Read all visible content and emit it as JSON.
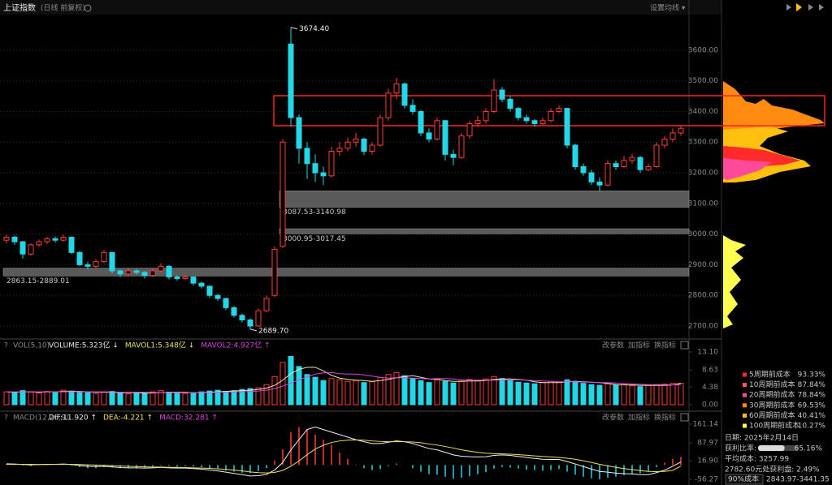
{
  "header": {
    "title": "上证指数",
    "subtitle": "(日线 前复权)",
    "ma_setting": "设置均线 ▾"
  },
  "price_chart": {
    "type": "candlestick",
    "up_color": "#ff3c3c",
    "down_color": "#22d8e6",
    "ylim": [
      2663,
      3716
    ],
    "yticks": [
      {
        "value": 2700,
        "label": "2700.00"
      },
      {
        "value": 2800,
        "label": "2800.00"
      },
      {
        "value": 2900,
        "label": "2900.00"
      },
      {
        "value": 3000,
        "label": "3000.00"
      },
      {
        "value": 3100,
        "label": "3100.00"
      },
      {
        "value": 3200,
        "label": "3200.00"
      },
      {
        "value": 3300,
        "label": "3300.00"
      },
      {
        "value": 3400,
        "label": "3400.00"
      },
      {
        "value": 3500,
        "label": "3500.00"
      },
      {
        "value": 3600,
        "label": "3600.00"
      }
    ],
    "candles": [
      [
        2980,
        2998,
        2970,
        2990
      ],
      [
        2990,
        2995,
        2965,
        2975
      ],
      [
        2975,
        2978,
        2920,
        2935
      ],
      [
        2935,
        2970,
        2930,
        2965
      ],
      [
        2965,
        2982,
        2958,
        2975
      ],
      [
        2975,
        2990,
        2968,
        2985
      ],
      [
        2985,
        2992,
        2972,
        2980
      ],
      [
        2980,
        2998,
        2975,
        2990
      ],
      [
        2990,
        2992,
        2935,
        2940
      ],
      [
        2940,
        2945,
        2895,
        2900
      ],
      [
        2900,
        2910,
        2885,
        2895
      ],
      [
        2895,
        2918,
        2890,
        2910
      ],
      [
        2910,
        2948,
        2905,
        2940
      ],
      [
        2940,
        2942,
        2872,
        2880
      ],
      [
        2880,
        2885,
        2860,
        2870
      ],
      [
        2870,
        2888,
        2862,
        2880
      ],
      [
        2880,
        2886,
        2868,
        2875
      ],
      [
        2875,
        2880,
        2855,
        2865
      ],
      [
        2865,
        2888,
        2860,
        2880
      ],
      [
        2880,
        2905,
        2875,
        2895
      ],
      [
        2895,
        2898,
        2852,
        2860
      ],
      [
        2860,
        2866,
        2848,
        2855
      ],
      [
        2855,
        2868,
        2850,
        2860
      ],
      [
        2860,
        2862,
        2832,
        2840
      ],
      [
        2840,
        2845,
        2822,
        2830
      ],
      [
        2830,
        2832,
        2792,
        2800
      ],
      [
        2800,
        2805,
        2782,
        2790
      ],
      [
        2790,
        2792,
        2752,
        2760
      ],
      [
        2760,
        2765,
        2728,
        2735
      ],
      [
        2735,
        2740,
        2712,
        2720
      ],
      [
        2720,
        2725,
        2689.7,
        2700
      ],
      [
        2700,
        2758,
        2698,
        2750
      ],
      [
        2750,
        2800,
        2745,
        2790
      ],
      [
        2800,
        2960,
        2795,
        2950
      ],
      [
        2960,
        3310,
        2955,
        3300
      ],
      [
        3620,
        3674.4,
        3350,
        3380
      ],
      [
        3380,
        3390,
        3230,
        3280
      ],
      [
        3280,
        3300,
        3180,
        3230
      ],
      [
        3230,
        3260,
        3170,
        3200
      ],
      [
        3200,
        3220,
        3160,
        3190
      ],
      [
        3190,
        3285,
        3185,
        3270
      ],
      [
        3270,
        3300,
        3255,
        3280
      ],
      [
        3280,
        3315,
        3270,
        3300
      ],
      [
        3300,
        3330,
        3285,
        3310
      ],
      [
        3310,
        3315,
        3258,
        3270
      ],
      [
        3270,
        3300,
        3260,
        3290
      ],
      [
        3290,
        3390,
        3285,
        3380
      ],
      [
        3380,
        3475,
        3370,
        3460
      ],
      [
        3460,
        3510,
        3440,
        3490
      ],
      [
        3490,
        3495,
        3410,
        3420
      ],
      [
        3420,
        3440,
        3390,
        3400
      ],
      [
        3400,
        3405,
        3320,
        3330
      ],
      [
        3330,
        3345,
        3300,
        3310
      ],
      [
        3310,
        3380,
        3305,
        3370
      ],
      [
        3370,
        3372,
        3240,
        3260
      ],
      [
        3260,
        3275,
        3225,
        3250
      ],
      [
        3250,
        3330,
        3245,
        3320
      ],
      [
        3320,
        3370,
        3310,
        3360
      ],
      [
        3360,
        3385,
        3350,
        3370
      ],
      [
        3370,
        3410,
        3360,
        3400
      ],
      [
        3400,
        3505,
        3395,
        3470
      ],
      [
        3470,
        3480,
        3430,
        3440
      ],
      [
        3440,
        3450,
        3400,
        3410
      ],
      [
        3410,
        3415,
        3370,
        3380
      ],
      [
        3380,
        3390,
        3360,
        3370
      ],
      [
        3370,
        3375,
        3350,
        3360
      ],
      [
        3360,
        3380,
        3355,
        3370
      ],
      [
        3370,
        3410,
        3365,
        3400
      ],
      [
        3400,
        3420,
        3395,
        3410
      ],
      [
        3410,
        3412,
        3280,
        3290
      ],
      [
        3290,
        3295,
        3210,
        3220
      ],
      [
        3220,
        3230,
        3190,
        3200
      ],
      [
        3200,
        3210,
        3160,
        3170
      ],
      [
        3170,
        3185,
        3140,
        3160
      ],
      [
        3160,
        3240,
        3155,
        3230
      ],
      [
        3230,
        3240,
        3210,
        3220
      ],
      [
        3220,
        3255,
        3215,
        3240
      ],
      [
        3240,
        3262,
        3230,
        3250
      ],
      [
        3250,
        3255,
        3200,
        3210
      ],
      [
        3210,
        3230,
        3205,
        3220
      ],
      [
        3220,
        3300,
        3215,
        3290
      ],
      [
        3290,
        3320,
        3280,
        3310
      ],
      [
        3310,
        3345,
        3300,
        3330
      ],
      [
        3330,
        3355,
        3320,
        3345
      ]
    ],
    "annotations": [
      {
        "value": 3674.4,
        "label": "3674.40"
      },
      {
        "value": 2689.7,
        "label": "2689.70"
      }
    ],
    "zones": [
      {
        "range": [
          3087.53,
          3140.98
        ],
        "label": "3087.53-3140.98"
      },
      {
        "range": [
          3000.95,
          3017.45
        ],
        "label": "3000.95-3017.45"
      },
      {
        "range": [
          2863.15,
          2889.01
        ],
        "label": "2863.15-2889.01"
      }
    ]
  },
  "volume_panel": {
    "type": "bar",
    "indicator": "VOL(5,10)",
    "readouts": [
      {
        "text": "VOLUME:5.323亿 ↓",
        "color": "#e8e8e8"
      },
      {
        "text": "MAVOL1:5.348亿 ↓",
        "color": "#f0e060"
      },
      {
        "text": "MAVOL2:4.927亿 ↑",
        "color": "#e040e0"
      }
    ],
    "buttons": [
      "改参数",
      "加指标",
      "换指标"
    ],
    "ylim": [
      0,
      13.1
    ],
    "yticks": [
      {
        "value": 0,
        "label": "0.00"
      },
      4.38,
      8.63,
      {
        "value": 13.1,
        "label": "13.10"
      }
    ],
    "values": [
      3.2,
      3.0,
      3.5,
      3.1,
      2.9,
      3.3,
      3.0,
      3.6,
      3.4,
      3.2,
      3.0,
      2.8,
      3.1,
      3.3,
      2.9,
      2.7,
      3.0,
      2.8,
      3.2,
      3.5,
      3.1,
      2.9,
      2.8,
      3.0,
      3.2,
      3.4,
      3.6,
      3.3,
      3.5,
      3.8,
      4.0,
      4.2,
      5.0,
      7.0,
      10.5,
      12.0,
      9.5,
      7.5,
      6.8,
      6.0,
      6.5,
      6.2,
      5.8,
      6.0,
      5.5,
      5.7,
      6.8,
      7.5,
      8.0,
      7.2,
      6.5,
      6.0,
      5.5,
      6.2,
      5.8,
      5.4,
      5.9,
      6.3,
      6.0,
      6.4,
      7.0,
      6.5,
      6.0,
      5.6,
      5.4,
      5.2,
      5.5,
      5.8,
      5.6,
      6.2,
      5.8,
      5.3,
      5.0,
      4.8,
      5.2,
      4.9,
      5.0,
      4.7,
      4.5,
      4.8,
      5.0,
      5.1,
      5.3,
      5.323
    ],
    "ma_lines": [
      {
        "color": "#f0e8b0",
        "values": [
          3.2,
          3.1,
          3.2,
          3.2,
          3.1,
          3.2,
          3.2,
          3.3,
          3.3,
          3.3,
          3.2,
          3.1,
          3.1,
          3.1,
          3.0,
          3.0,
          3.0,
          2.9,
          2.9,
          3.0,
          3.1,
          3.1,
          3.1,
          3.0,
          3.0,
          3.1,
          3.2,
          3.3,
          3.4,
          3.5,
          3.6,
          3.8,
          4.1,
          4.8,
          6.1,
          7.7,
          8.8,
          9.3,
          9.3,
          8.4,
          7.3,
          6.6,
          6.3,
          6.1,
          6.0,
          5.8,
          6.0,
          6.3,
          6.7,
          7.0,
          7.2,
          6.8,
          6.4,
          6.3,
          6.0,
          5.8,
          5.8,
          5.9,
          5.9,
          6.0,
          6.3,
          6.4,
          6.4,
          6.3,
          6.1,
          5.7,
          5.5,
          5.5,
          5.5,
          5.7,
          5.8,
          5.7,
          5.6,
          5.5,
          5.3,
          5.0,
          4.9,
          4.9,
          4.8,
          4.8,
          4.8,
          4.8,
          4.9,
          5.348
        ]
      },
      {
        "color": "#e040e0",
        "values": [
          3.2,
          3.2,
          3.2,
          3.2,
          3.2,
          3.2,
          3.2,
          3.2,
          3.2,
          3.2,
          3.2,
          3.2,
          3.2,
          3.2,
          3.1,
          3.1,
          3.1,
          3.1,
          3.0,
          3.0,
          3.0,
          3.0,
          3.0,
          3.0,
          3.0,
          3.0,
          3.1,
          3.1,
          3.2,
          3.2,
          3.3,
          3.4,
          3.6,
          4.0,
          4.6,
          5.4,
          6.2,
          6.9,
          7.6,
          7.9,
          8.0,
          7.7,
          7.6,
          7.6,
          7.4,
          7.1,
          6.8,
          6.6,
          6.7,
          6.7,
          6.6,
          6.5,
          6.4,
          6.5,
          6.5,
          6.4,
          6.2,
          6.1,
          6.1,
          6.1,
          6.1,
          6.1,
          6.2,
          6.2,
          6.1,
          6.0,
          5.9,
          5.8,
          5.7,
          5.7,
          5.7,
          5.6,
          5.6,
          5.5,
          5.5,
          5.4,
          5.3,
          5.2,
          5.1,
          5.0,
          5.0,
          5.0,
          4.95,
          4.927
        ]
      }
    ]
  },
  "macd_panel": {
    "type": "macd",
    "indicator": "MACD(12,26,9)",
    "readouts": [
      {
        "text": "DIF:11.920 ↑",
        "color": "#e8e8e8"
      },
      {
        "text": "DEA:-4.221 ↑",
        "color": "#f0e060"
      },
      {
        "text": "MACD:32.281 ↑",
        "color": "#e040e0"
      }
    ],
    "buttons": [
      "改参数",
      "加指标",
      "换指标"
    ],
    "ylim": [
      -56.27,
      161.14
    ],
    "yticks": [
      -56.27,
      {
        "value": 16.9,
        "label": "16.90"
      },
      87.97,
      161.14
    ],
    "bars": [
      4,
      2,
      -2,
      -4,
      0,
      2,
      0,
      2,
      -2,
      -8,
      -12,
      -12,
      -8,
      -10,
      -12,
      -12,
      -10,
      -10,
      -6,
      -2,
      -4,
      -6,
      -4,
      -6,
      -8,
      -14,
      -16,
      -22,
      -26,
      -30,
      -32,
      -24,
      -12,
      18,
      62,
      130,
      150,
      140,
      120,
      100,
      80,
      50,
      24,
      2,
      -12,
      -20,
      -16,
      -4,
      6,
      0,
      -12,
      -26,
      -36,
      -38,
      -46,
      -54,
      -50,
      -44,
      -36,
      -28,
      -14,
      -8,
      -10,
      -14,
      -18,
      -20,
      -22,
      -20,
      -16,
      -26,
      -38,
      -46,
      -52,
      -56,
      -50,
      -46,
      -40,
      -34,
      -32,
      -26,
      -8,
      10,
      24,
      32.281
    ],
    "lines": [
      {
        "color": "#f0f0f0",
        "values": [
          5,
          4,
          2,
          1,
          2,
          3,
          3,
          4,
          2,
          -2,
          -5,
          -6,
          -5,
          -7,
          -10,
          -11,
          -11,
          -12,
          -11,
          -9,
          -11,
          -12,
          -12,
          -14,
          -16,
          -20,
          -23,
          -28,
          -33,
          -38,
          -43,
          -42,
          -37,
          -20,
          10,
          60,
          100,
          140,
          150,
          140,
          130,
          120,
          110,
          100,
          92,
          85,
          85,
          90,
          95,
          92,
          85,
          75,
          65,
          60,
          50,
          40,
          35,
          33,
          32,
          33,
          38,
          40,
          38,
          34,
          30,
          26,
          23,
          22,
          22,
          14,
          4,
          -6,
          -16,
          -25,
          -28,
          -32,
          -34,
          -35,
          -38,
          -38,
          -30,
          -20,
          -5,
          11.92
        ]
      },
      {
        "color": "#f0e060",
        "values": [
          3,
          3,
          3,
          3,
          2,
          2,
          3,
          3,
          3,
          2,
          1,
          0,
          -1,
          -2,
          -4,
          -5,
          -6,
          -7,
          -8,
          -8,
          -9,
          -9,
          -10,
          -11,
          -12,
          -13,
          -15,
          -17,
          -20,
          -23,
          -27,
          -30,
          -31,
          -29,
          -21,
          -5,
          16,
          41,
          63,
          78,
          89,
          95,
          98,
          99,
          98,
          95,
          93,
          92,
          92,
          92,
          91,
          88,
          83,
          79,
          73,
          67,
          60,
          55,
          50,
          47,
          45,
          44,
          43,
          41,
          39,
          36,
          34,
          32,
          30,
          27,
          23,
          17,
          10,
          3,
          -3,
          -9,
          -14,
          -18,
          -22,
          -25,
          -26,
          -25,
          -21,
          -4.221
        ]
      }
    ]
  },
  "cost_panel": {
    "legend": [
      {
        "label": "5周期前成本",
        "value": "93.33%",
        "color": "#ff2a2a"
      },
      {
        "label": "10周期前成本",
        "value": "87.84%",
        "color": "#ff5a5a"
      },
      {
        "label": "20周期前成本",
        "value": "78.84%",
        "color": "#ff4a9a"
      },
      {
        "label": "30周期前成本",
        "value": "69.53%",
        "color": "#ff8c10"
      },
      {
        "label": "60周期前成本",
        "value": "40.41%",
        "color": "#ffc010"
      },
      {
        "label": "100周期前成本",
        "value": "10.27%",
        "color": "#ffff50"
      }
    ],
    "date": "日期: 2025年2月14日",
    "profit_ratio": {
      "label": "获利比率:",
      "value": 65.16,
      "value_label": "65.16%"
    },
    "avg_cost": "平均成本: 3257.99",
    "profit_at": "2782.60元处获利盘: 2.49%",
    "range_select": "90%成本",
    "range": "2843.97-3441.35"
  }
}
